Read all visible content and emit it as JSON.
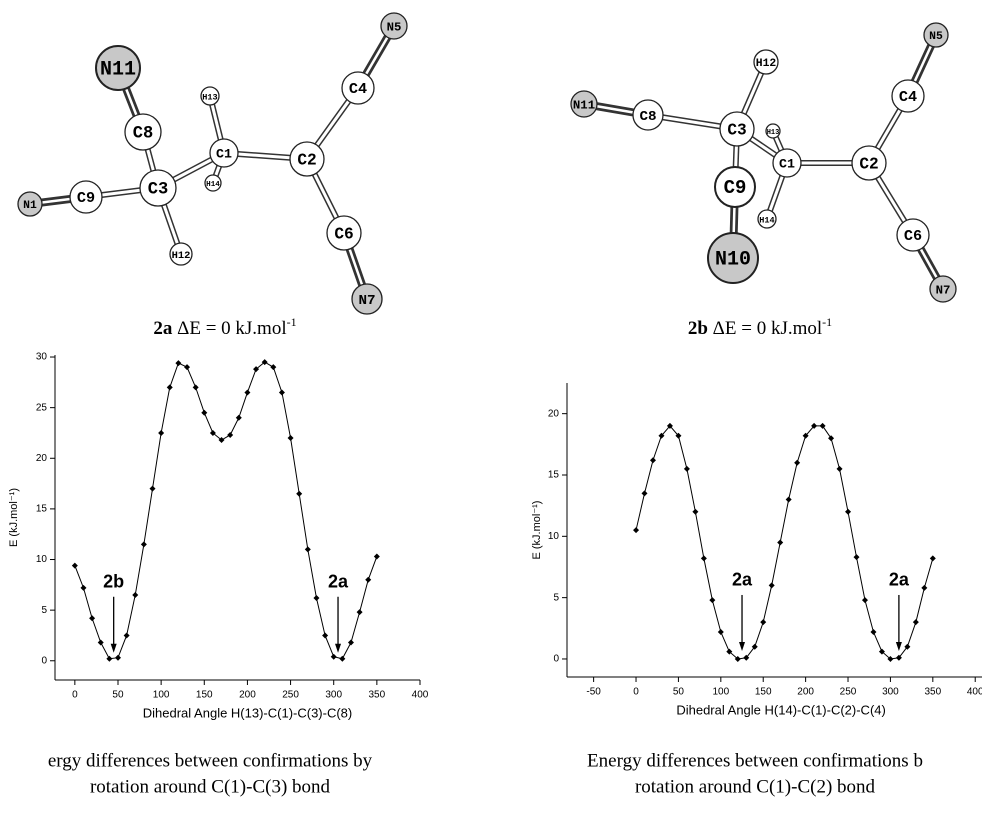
{
  "molecules": [
    {
      "atoms": [
        "N11",
        "C8",
        "H13",
        "C1",
        "C2",
        "C4",
        "N5",
        "N1",
        "C9",
        "C3",
        "H14",
        "H12",
        "C6",
        "N7"
      ],
      "caption": {
        "label": "2a",
        "text": "ΔE = 0 kJ.mol",
        "sup": "-1"
      }
    },
    {
      "atoms": [
        "N11",
        "C8",
        "H12",
        "C3",
        "H13",
        "C1",
        "C2",
        "C4",
        "N5",
        "C9",
        "N10",
        "H14",
        "C6",
        "N7"
      ],
      "caption": {
        "label": "2b",
        "text": "ΔE = 0 kJ.mol",
        "sup": "-1"
      }
    }
  ],
  "chart_data": [
    {
      "type": "line",
      "xlabel": "Dihedral Angle H(13)-C(1)-C(3)-C(8)",
      "ylabel": "E (kJ.mol⁻¹)",
      "color": "#000000",
      "x": [
        0,
        10,
        20,
        30,
        40,
        50,
        60,
        70,
        80,
        90,
        100,
        110,
        120,
        130,
        140,
        150,
        160,
        170,
        180,
        190,
        200,
        210,
        220,
        230,
        240,
        250,
        260,
        270,
        280,
        290,
        300,
        310,
        320,
        330,
        340,
        350
      ],
      "values": [
        9.4,
        7.2,
        4.2,
        1.8,
        0.2,
        0.3,
        2.5,
        6.5,
        11.5,
        17,
        22.5,
        27,
        29.4,
        29,
        27,
        24.5,
        22.5,
        21.8,
        22.3,
        24,
        26.5,
        28.8,
        29.5,
        29,
        26.5,
        22,
        16.5,
        11,
        6.2,
        2.5,
        0.4,
        0.2,
        1.8,
        4.8,
        8,
        10.3
      ],
      "xlim": [
        -23,
        400
      ],
      "ylim": [
        -1.9,
        30.2
      ],
      "xticks": [
        0,
        50,
        100,
        150,
        200,
        250,
        300,
        350,
        400
      ],
      "yticks": [
        0,
        5,
        10,
        15,
        20,
        25,
        30
      ],
      "annotations": [
        {
          "text": "2b",
          "x": 45
        },
        {
          "text": "2a",
          "x": 305
        }
      ],
      "caption": [
        "ergy differences between confirmations by",
        "rotation around C(1)-C(3) bond"
      ]
    },
    {
      "type": "line",
      "xlabel": "Dihedral Angle H(14)-C(1)-C(2)-C(4)",
      "ylabel": "E (kJ.mol⁻¹)",
      "color": "#000000",
      "x": [
        0,
        10,
        20,
        30,
        40,
        50,
        60,
        70,
        80,
        90,
        100,
        110,
        120,
        130,
        140,
        150,
        160,
        170,
        180,
        190,
        200,
        210,
        220,
        230,
        240,
        250,
        260,
        270,
        280,
        290,
        300,
        310,
        320,
        330,
        340,
        350
      ],
      "values": [
        10.5,
        13.5,
        16.2,
        18.2,
        19,
        18.2,
        15.5,
        12,
        8.2,
        4.8,
        2.2,
        0.6,
        0,
        0.1,
        1,
        3,
        6,
        9.5,
        13,
        16,
        18.2,
        19,
        19,
        18,
        15.5,
        12,
        8.3,
        4.8,
        2.2,
        0.6,
        0,
        0.1,
        1,
        3,
        5.8,
        8.2
      ],
      "xlim": [
        -81.4,
        408
      ],
      "ylim": [
        -1.47,
        22.5
      ],
      "xticks": [
        -50,
        0,
        50,
        100,
        150,
        200,
        250,
        300,
        350,
        400
      ],
      "yticks": [
        0,
        5,
        10,
        15,
        20
      ],
      "annotations": [
        {
          "text": "2a",
          "x": 125
        },
        {
          "text": "2a",
          "x": 310
        }
      ],
      "caption": [
        "Energy differences between confirmations b",
        "rotation around C(1)-C(2) bond"
      ]
    }
  ]
}
